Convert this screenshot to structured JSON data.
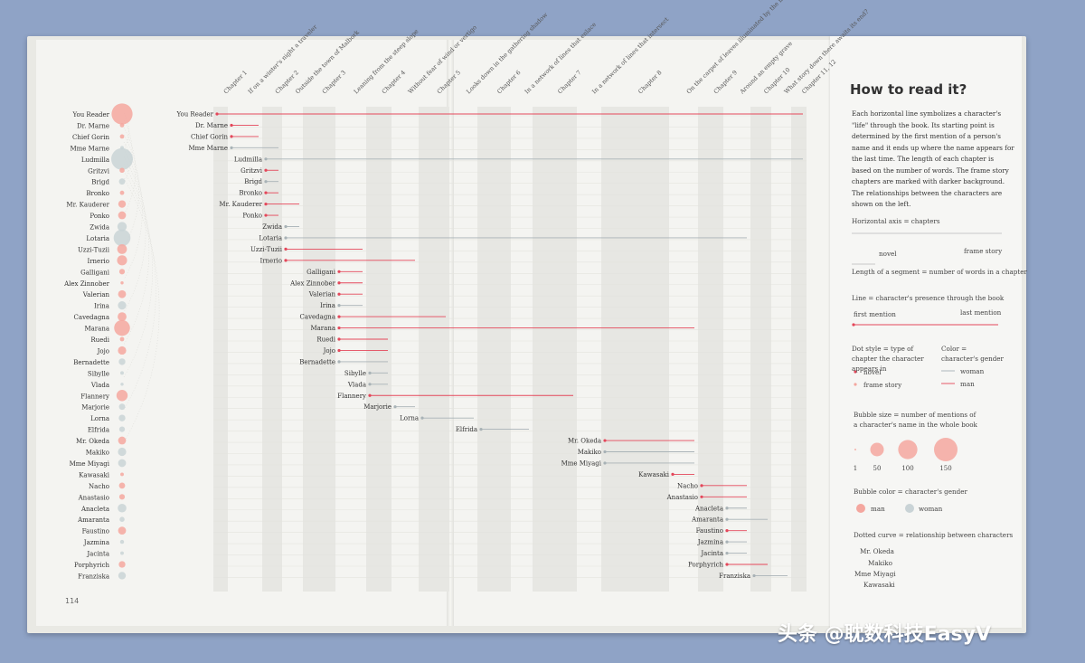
{
  "chart_data": {
    "type": "timeline",
    "x_axis": "chapters",
    "chapters": [
      "Chapter 1",
      "If on a winter's night a traveler",
      "Chapter 2",
      "Outside the town of Malbork",
      "Chapter 3",
      "Leaning from the steep slope",
      "Chapter 4",
      "Without fear of wind or vertigo",
      "Chapter 5",
      "Looks down in the gathering shadow",
      "Chapter 6",
      "In a network of lines that enlace",
      "Chapter 7",
      "In a network of lines that intersect",
      "Chapter 8",
      "On the carpet of leaves illuminated by the moon",
      "Chapter 9",
      "Around an empty grave",
      "Chapter 10",
      "What story down there awaits its end?",
      "Chapter 11, 12"
    ],
    "bubble_legend_values": [
      1,
      50,
      100,
      150
    ],
    "colors": {
      "man": "#f4a79f",
      "woman": "#c9d3d6",
      "man_line": "#e4475a",
      "woman_line": "#a8b2b6"
    },
    "characters": [
      {
        "name": "You Reader",
        "gender": "man",
        "start": 0,
        "end": 20,
        "mentions": 140
      },
      {
        "name": "Dr. Marne",
        "gender": "man",
        "start": 1,
        "end": 1,
        "mentions": 6
      },
      {
        "name": "Chief Gorin",
        "gender": "man",
        "start": 1,
        "end": 1,
        "mentions": 6
      },
      {
        "name": "Mme Marne",
        "gender": "woman",
        "start": 1,
        "end": 2,
        "mentions": 4
      },
      {
        "name": "Ludmilla",
        "gender": "woman",
        "start": 2,
        "end": 20,
        "mentions": 150
      },
      {
        "name": "Gritzvi",
        "gender": "man",
        "start": 2,
        "end": 2,
        "mentions": 8
      },
      {
        "name": "Brigd",
        "gender": "woman",
        "start": 2,
        "end": 2,
        "mentions": 12
      },
      {
        "name": "Bronko",
        "gender": "man",
        "start": 2,
        "end": 2,
        "mentions": 6
      },
      {
        "name": "Mr. Kauderer",
        "gender": "man",
        "start": 2,
        "end": 3,
        "mentions": 18
      },
      {
        "name": "Ponko",
        "gender": "man",
        "start": 2,
        "end": 2,
        "mentions": 20
      },
      {
        "name": "Zwida",
        "gender": "woman",
        "start": 3,
        "end": 3,
        "mentions": 28
      },
      {
        "name": "Lotaria",
        "gender": "woman",
        "start": 3,
        "end": 17,
        "mentions": 90
      },
      {
        "name": "Uzzi-Tuzii",
        "gender": "man",
        "start": 3,
        "end": 5,
        "mentions": 30
      },
      {
        "name": "Irnerio",
        "gender": "man",
        "start": 3,
        "end": 7,
        "mentions": 32
      },
      {
        "name": "Galligani",
        "gender": "man",
        "start": 5,
        "end": 5,
        "mentions": 10
      },
      {
        "name": "Alex Zinnober",
        "gender": "man",
        "start": 5,
        "end": 5,
        "mentions": 3
      },
      {
        "name": "Valerian",
        "gender": "man",
        "start": 5,
        "end": 5,
        "mentions": 20
      },
      {
        "name": "Irina",
        "gender": "woman",
        "start": 5,
        "end": 5,
        "mentions": 22
      },
      {
        "name": "Cavedagna",
        "gender": "man",
        "start": 5,
        "end": 8,
        "mentions": 25
      },
      {
        "name": "Marana",
        "gender": "man",
        "start": 5,
        "end": 15,
        "mentions": 80
      },
      {
        "name": "Ruedi",
        "gender": "man",
        "start": 5,
        "end": 6,
        "mentions": 6
      },
      {
        "name": "Jojo",
        "gender": "man",
        "start": 5,
        "end": 6,
        "mentions": 22
      },
      {
        "name": "Bernadette",
        "gender": "woman",
        "start": 5,
        "end": 6,
        "mentions": 14
      },
      {
        "name": "Sibylle",
        "gender": "woman",
        "start": 6,
        "end": 6,
        "mentions": 4
      },
      {
        "name": "Vlada",
        "gender": "woman",
        "start": 6,
        "end": 6,
        "mentions": 3
      },
      {
        "name": "Flannery",
        "gender": "man",
        "start": 6,
        "end": 12,
        "mentions": 40
      },
      {
        "name": "Marjorie",
        "gender": "woman",
        "start": 7,
        "end": 7,
        "mentions": 12
      },
      {
        "name": "Lorna",
        "gender": "woman",
        "start": 8,
        "end": 9,
        "mentions": 14
      },
      {
        "name": "Elfrida",
        "gender": "woman",
        "start": 10,
        "end": 11,
        "mentions": 10
      },
      {
        "name": "Mr. Okeda",
        "gender": "man",
        "start": 14,
        "end": 15,
        "mentions": 20
      },
      {
        "name": "Makiko",
        "gender": "woman",
        "start": 14,
        "end": 15,
        "mentions": 22
      },
      {
        "name": "Mme Miyagi",
        "gender": "woman",
        "start": 14,
        "end": 15,
        "mentions": 20
      },
      {
        "name": "Kawasaki",
        "gender": "man",
        "start": 15,
        "end": 15,
        "mentions": 4
      },
      {
        "name": "Nacho",
        "gender": "man",
        "start": 16,
        "end": 17,
        "mentions": 12
      },
      {
        "name": "Anastasio",
        "gender": "man",
        "start": 16,
        "end": 17,
        "mentions": 10
      },
      {
        "name": "Anacleta",
        "gender": "woman",
        "start": 17,
        "end": 17,
        "mentions": 24
      },
      {
        "name": "Amaranta",
        "gender": "woman",
        "start": 17,
        "end": 18,
        "mentions": 8
      },
      {
        "name": "Faustino",
        "gender": "man",
        "start": 17,
        "end": 17,
        "mentions": 20
      },
      {
        "name": "Jazmina",
        "gender": "woman",
        "start": 17,
        "end": 17,
        "mentions": 5
      },
      {
        "name": "Jacinta",
        "gender": "woman",
        "start": 17,
        "end": 17,
        "mentions": 4
      },
      {
        "name": "Porphyrich",
        "gender": "man",
        "start": 17,
        "end": 18,
        "mentions": 14
      },
      {
        "name": "Franziska",
        "gender": "woman",
        "start": 18,
        "end": 19,
        "mentions": 18
      }
    ]
  },
  "legend": {
    "title": "How to read it?",
    "intro": "Each horizontal line symbolizes a character's \"life\" through the book. Its starting point is determined by the first mention of a person's name and it ends up where the name appears for the last time. The length of each chapter is based on the number of words. The frame story chapters are marked with darker background. The relationships between the characters are shown on the left.",
    "horizontal_axis": "Horizontal axis = chapters",
    "novel": "novel",
    "frame_story": "frame story",
    "segment_length": "Length of a segment = number of words in a chapter",
    "line_presence": "Line = character's presence through the book",
    "first_mention": "first mention",
    "last_mention": "last mention",
    "dot_style": "Dot style = type of chapter the character appears in",
    "color_gender": "Color = character's gender",
    "dot_novel": "novel",
    "dot_frame": "frame story",
    "woman": "woman",
    "man": "man",
    "bubble_size": "Bubble size = number of mentions of a character's name in the whole book",
    "bubble_color": "Bubble color = character's gender",
    "bubble_man": "man",
    "bubble_woman": "woman",
    "dotted_curve": "Dotted curve = relationship between characters",
    "curve_names": [
      "Mr. Okeda",
      "Makiko",
      "Mme Miyagi",
      "Kawasaki"
    ]
  },
  "page_number": "114",
  "watermark": "头条 @耽数科技EasyV"
}
